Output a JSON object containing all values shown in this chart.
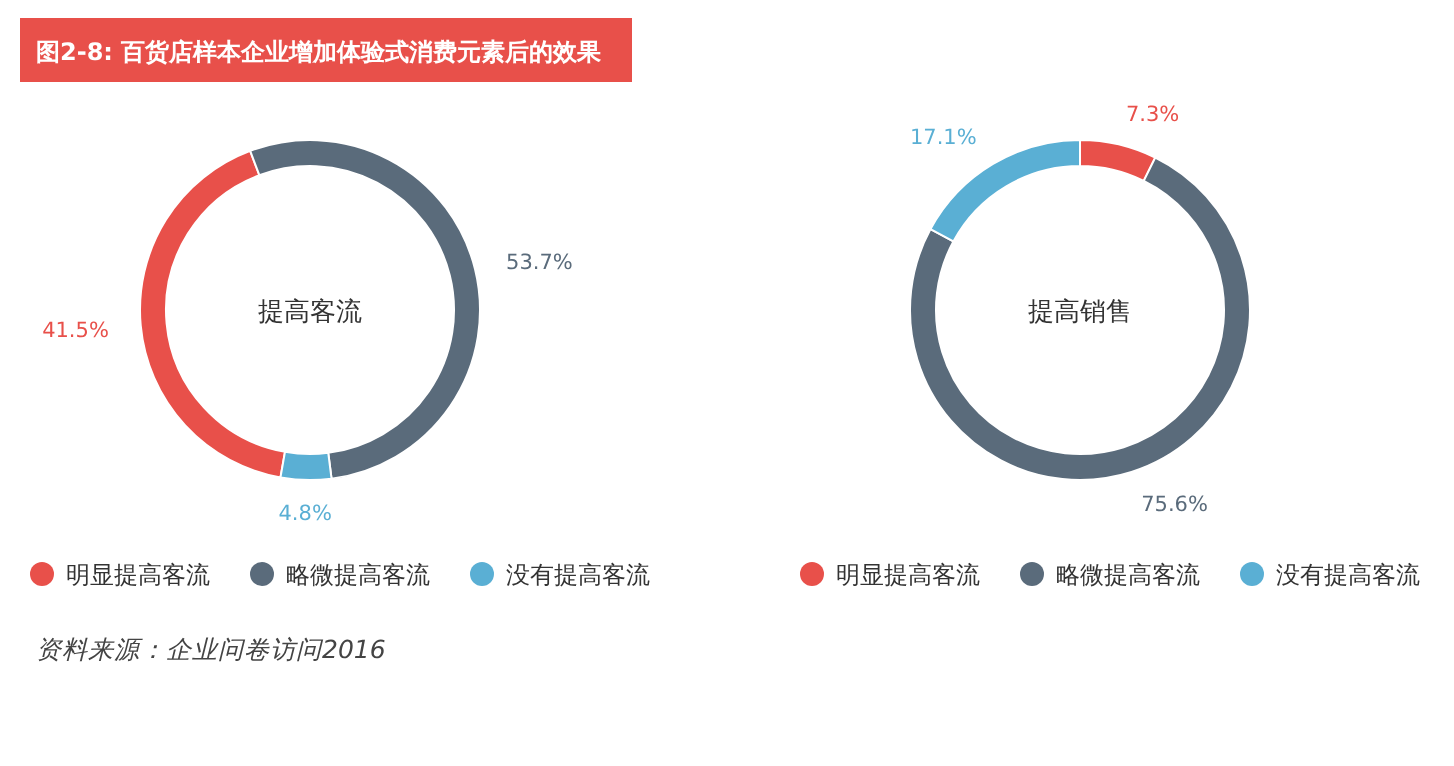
{
  "chart_data": [
    {
      "type": "donut",
      "title": "图2-8: 百货店样本企业增加体验式消费元素后的效果",
      "subtitle": "提高客流",
      "categories": [
        "明显提高客流",
        "略微提高客流",
        "没有提高客流"
      ],
      "values": [
        41.5,
        53.7,
        4.8
      ],
      "value_labels": [
        "41.5%",
        "53.7%",
        "4.8%"
      ],
      "colors": [
        "#e8504a",
        "#5a6b7b",
        "#5aafd4"
      ],
      "legend": "bottom",
      "annotations": [
        "资料来源：企业问卷访问2016"
      ]
    },
    {
      "type": "donut",
      "subtitle": "提高销售",
      "categories": [
        "明显提高客流",
        "略微提高客流",
        "没有提高客流"
      ],
      "values": [
        7.3,
        75.6,
        17.1
      ],
      "value_labels": [
        "7.3%",
        "75.6%",
        "17.1%"
      ],
      "colors": [
        "#e8504a",
        "#5a6b7b",
        "#5aafd4"
      ],
      "legend": "bottom"
    }
  ]
}
